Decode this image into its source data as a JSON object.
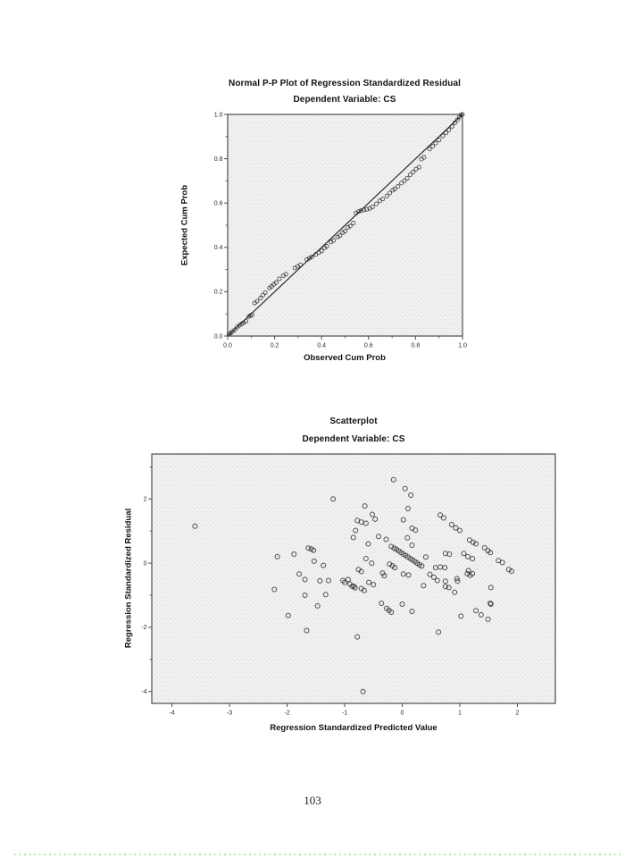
{
  "page": {
    "number": "103",
    "background": "#ffffff",
    "bottom_dots_color": "#9be89b"
  },
  "chart_data": [
    {
      "type": "scatter",
      "title": "Normal P-P Plot of Regression Standardized Residual",
      "subtitle": "Dependent Variable: CS",
      "xlabel": "Observed Cum Prob",
      "ylabel": "Expected Cum Prob",
      "xlim": [
        0,
        1
      ],
      "ylim": [
        0,
        1
      ],
      "xticks": [
        0,
        0.2,
        0.4,
        0.6,
        0.8,
        1
      ],
      "xtick_labels": [
        "0.0",
        "0.2",
        "0.4",
        "0.6",
        "0.8",
        "1.0"
      ],
      "yticks": [
        0,
        0.2,
        0.4,
        0.6,
        0.8,
        1
      ],
      "ytick_labels": [
        "0.0",
        "0.2",
        "0.4",
        "0.6",
        "0.8",
        "1.0"
      ],
      "minor_xticks": [
        0.1,
        0.3,
        0.5,
        0.7,
        0.9
      ],
      "minor_yticks": [
        0.1,
        0.3,
        0.5,
        0.7,
        0.9
      ],
      "grid": false,
      "legend": null,
      "frame_color": "#4d4d4d",
      "marker_color": "#1f1f1f",
      "reference_line": {
        "x": [
          0,
          1
        ],
        "y": [
          0,
          1
        ],
        "color": "#1a1a1a"
      },
      "points": [
        [
          0.005,
          0.008
        ],
        [
          0.012,
          0.013
        ],
        [
          0.02,
          0.02
        ],
        [
          0.03,
          0.028
        ],
        [
          0.04,
          0.04
        ],
        [
          0.05,
          0.048
        ],
        [
          0.06,
          0.055
        ],
        [
          0.068,
          0.06
        ],
        [
          0.078,
          0.067
        ],
        [
          0.09,
          0.088
        ],
        [
          0.097,
          0.092
        ],
        [
          0.104,
          0.096
        ],
        [
          0.115,
          0.149
        ],
        [
          0.125,
          0.157
        ],
        [
          0.14,
          0.171
        ],
        [
          0.15,
          0.185
        ],
        [
          0.16,
          0.196
        ],
        [
          0.178,
          0.217
        ],
        [
          0.187,
          0.224
        ],
        [
          0.196,
          0.233
        ],
        [
          0.206,
          0.241
        ],
        [
          0.22,
          0.258
        ],
        [
          0.237,
          0.272
        ],
        [
          0.248,
          0.279
        ],
        [
          0.286,
          0.307
        ],
        [
          0.298,
          0.314
        ],
        [
          0.31,
          0.321
        ],
        [
          0.337,
          0.345
        ],
        [
          0.348,
          0.351
        ],
        [
          0.358,
          0.357
        ],
        [
          0.375,
          0.368
        ],
        [
          0.388,
          0.376
        ],
        [
          0.4,
          0.384
        ],
        [
          0.412,
          0.398
        ],
        [
          0.422,
          0.405
        ],
        [
          0.44,
          0.424
        ],
        [
          0.451,
          0.431
        ],
        [
          0.468,
          0.447
        ],
        [
          0.478,
          0.453
        ],
        [
          0.49,
          0.467
        ],
        [
          0.5,
          0.473
        ],
        [
          0.512,
          0.49
        ],
        [
          0.522,
          0.496
        ],
        [
          0.535,
          0.51
        ],
        [
          0.547,
          0.555
        ],
        [
          0.558,
          0.562
        ],
        [
          0.568,
          0.566
        ],
        [
          0.58,
          0.569
        ],
        [
          0.592,
          0.572
        ],
        [
          0.605,
          0.576
        ],
        [
          0.617,
          0.583
        ],
        [
          0.633,
          0.596
        ],
        [
          0.648,
          0.61
        ],
        [
          0.66,
          0.618
        ],
        [
          0.678,
          0.632
        ],
        [
          0.69,
          0.645
        ],
        [
          0.703,
          0.658
        ],
        [
          0.712,
          0.664
        ],
        [
          0.725,
          0.675
        ],
        [
          0.74,
          0.69
        ],
        [
          0.753,
          0.701
        ],
        [
          0.765,
          0.712
        ],
        [
          0.778,
          0.728
        ],
        [
          0.79,
          0.74
        ],
        [
          0.802,
          0.753
        ],
        [
          0.815,
          0.762
        ],
        [
          0.825,
          0.798
        ],
        [
          0.836,
          0.806
        ],
        [
          0.86,
          0.844
        ],
        [
          0.873,
          0.856
        ],
        [
          0.886,
          0.87
        ],
        [
          0.9,
          0.885
        ],
        [
          0.916,
          0.903
        ],
        [
          0.93,
          0.917
        ],
        [
          0.942,
          0.93
        ],
        [
          0.955,
          0.946
        ],
        [
          0.967,
          0.962
        ],
        [
          0.978,
          0.975
        ],
        [
          0.987,
          0.988
        ],
        [
          0.994,
          0.998
        ],
        [
          1.0,
          1.0
        ]
      ]
    },
    {
      "type": "scatter",
      "title": "Scatterplot",
      "subtitle": "Dependent Variable: CS",
      "xlabel": "Regression Standardized Predicted Value",
      "ylabel": "Regression Standardized Residual",
      "xlim": [
        -4.35,
        2.66
      ],
      "ylim": [
        -4.37,
        3.4
      ],
      "xticks": [
        -4,
        -3,
        -2,
        -1,
        0,
        1,
        2
      ],
      "xtick_labels": [
        "-4",
        "-3",
        "-2",
        "-1",
        "0",
        "1",
        "2"
      ],
      "yticks": [
        -4,
        -2,
        0,
        2
      ],
      "ytick_labels": [
        "-4",
        "-2",
        "0",
        "2"
      ],
      "minor_xticks": [],
      "minor_yticks": [
        -3,
        -1,
        1,
        3
      ],
      "grid": false,
      "legend": null,
      "frame_color": "#4d4d4d",
      "marker_color": "#1f1f1f",
      "reference_line": null,
      "points": [
        [
          -3.6,
          1.15
        ],
        [
          -0.15,
          2.6
        ],
        [
          0.05,
          2.32
        ],
        [
          0.15,
          2.12
        ],
        [
          -1.2,
          2.0
        ],
        [
          0.1,
          1.7
        ],
        [
          -0.65,
          1.78
        ],
        [
          -0.52,
          1.52
        ],
        [
          0.66,
          1.5
        ],
        [
          0.72,
          1.41
        ],
        [
          -0.78,
          1.33
        ],
        [
          -0.71,
          1.28
        ],
        [
          -0.63,
          1.24
        ],
        [
          -0.47,
          1.37
        ],
        [
          0.02,
          1.35
        ],
        [
          0.17,
          1.09
        ],
        [
          0.23,
          1.03
        ],
        [
          -0.81,
          1.02
        ],
        [
          -0.85,
          0.8
        ],
        [
          -0.59,
          0.6
        ],
        [
          -0.41,
          0.83
        ],
        [
          -0.28,
          0.74
        ],
        [
          0.09,
          0.79
        ],
        [
          0.17,
          0.56
        ],
        [
          0.86,
          1.2
        ],
        [
          0.93,
          1.1
        ],
        [
          1.0,
          1.02
        ],
        [
          1.17,
          0.72
        ],
        [
          1.23,
          0.65
        ],
        [
          1.28,
          0.6
        ],
        [
          1.43,
          0.48
        ],
        [
          1.49,
          0.39
        ],
        [
          1.53,
          0.33
        ],
        [
          1.67,
          0.08
        ],
        [
          1.74,
          0.02
        ],
        [
          1.85,
          -0.2
        ],
        [
          1.9,
          -0.25
        ],
        [
          -2.17,
          0.2
        ],
        [
          -1.88,
          0.28
        ],
        [
          -1.63,
          0.47
        ],
        [
          -1.58,
          0.44
        ],
        [
          -1.54,
          0.4
        ],
        [
          -1.53,
          0.06
        ],
        [
          -1.37,
          -0.07
        ],
        [
          -1.79,
          -0.34
        ],
        [
          -1.69,
          -0.51
        ],
        [
          -1.43,
          -0.55
        ],
        [
          -1.28,
          -0.54
        ],
        [
          -1.03,
          -0.54
        ],
        [
          -0.19,
          0.52
        ],
        [
          -0.14,
          0.47
        ],
        [
          -0.1,
          0.43
        ],
        [
          -0.06,
          0.38
        ],
        [
          -0.02,
          0.33
        ],
        [
          0.02,
          0.28
        ],
        [
          0.06,
          0.24
        ],
        [
          0.1,
          0.19
        ],
        [
          0.14,
          0.14
        ],
        [
          0.18,
          0.1
        ],
        [
          0.22,
          0.05
        ],
        [
          0.26,
          0.0
        ],
        [
          0.3,
          -0.05
        ],
        [
          0.34,
          -0.09
        ],
        [
          -0.63,
          0.14
        ],
        [
          -0.53,
          0.0
        ],
        [
          -0.76,
          -0.2
        ],
        [
          -0.71,
          -0.26
        ],
        [
          -0.34,
          -0.31
        ],
        [
          -0.22,
          -0.03
        ],
        [
          -0.17,
          -0.08
        ],
        [
          -0.13,
          -0.14
        ],
        [
          0.02,
          -0.34
        ],
        [
          0.11,
          -0.37
        ],
        [
          -0.31,
          -0.39
        ],
        [
          0.41,
          0.19
        ],
        [
          0.75,
          0.3
        ],
        [
          0.82,
          0.28
        ],
        [
          0.66,
          -0.12
        ],
        [
          0.74,
          -0.14
        ],
        [
          0.58,
          -0.14
        ],
        [
          1.07,
          0.3
        ],
        [
          1.14,
          0.2
        ],
        [
          1.22,
          0.14
        ],
        [
          1.15,
          -0.23
        ],
        [
          1.22,
          -0.33
        ],
        [
          1.13,
          -0.33
        ],
        [
          1.18,
          -0.38
        ],
        [
          0.95,
          -0.48
        ],
        [
          0.75,
          -0.56
        ],
        [
          0.81,
          -0.76
        ],
        [
          0.91,
          -0.91
        ],
        [
          1.54,
          -0.76
        ],
        [
          1.53,
          -1.25
        ],
        [
          -0.94,
          -0.51
        ],
        [
          -1.0,
          -0.6
        ],
        [
          -0.87,
          -0.72
        ],
        [
          -0.82,
          -0.77
        ],
        [
          -0.91,
          -0.65
        ],
        [
          -0.84,
          -0.72
        ],
        [
          -0.71,
          -0.79
        ],
        [
          -0.66,
          -0.85
        ],
        [
          -0.58,
          -0.6
        ],
        [
          -0.5,
          -0.67
        ],
        [
          0.37,
          -0.7
        ],
        [
          0.48,
          -0.35
        ],
        [
          0.55,
          -0.44
        ],
        [
          0.61,
          -0.54
        ],
        [
          0.75,
          -0.73
        ],
        [
          0.96,
          -0.56
        ],
        [
          -0.36,
          -1.25
        ],
        [
          -0.27,
          -1.41
        ],
        [
          -0.23,
          -1.47
        ],
        [
          -0.19,
          -1.53
        ],
        [
          0.0,
          -1.28
        ],
        [
          0.17,
          -1.5
        ],
        [
          -0.78,
          -2.3
        ],
        [
          -0.68,
          -4.0
        ],
        [
          0.63,
          -2.15
        ],
        [
          1.02,
          -1.65
        ],
        [
          1.28,
          -1.48
        ],
        [
          1.37,
          -1.61
        ],
        [
          1.49,
          -1.75
        ],
        [
          1.54,
          -1.28
        ],
        [
          -2.22,
          -0.82
        ],
        [
          -1.69,
          -1.0
        ],
        [
          -1.33,
          -0.98
        ],
        [
          -1.47,
          -1.33
        ],
        [
          -1.98,
          -1.63
        ],
        [
          -1.66,
          -2.1
        ]
      ]
    }
  ]
}
